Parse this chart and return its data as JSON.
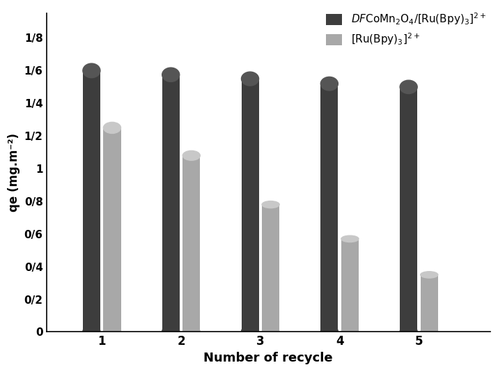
{
  "categories": [
    1,
    2,
    3,
    4,
    5
  ],
  "dark_values": [
    1.6,
    1.575,
    1.55,
    1.52,
    1.5
  ],
  "light_values": [
    1.25,
    1.08,
    0.78,
    0.57,
    0.35
  ],
  "dark_color": "#3d3d3d",
  "dark_top_color": "#555555",
  "light_color": "#a8a8a8",
  "light_top_color": "#c8c8c8",
  "ytick_labels": [
    "1/8",
    "1/6",
    "1/4",
    "1/2",
    "1",
    "0/8",
    "0/6",
    "0/4",
    "0/2",
    "0"
  ],
  "ytick_values": [
    1.8,
    1.6,
    1.4,
    1.2,
    1.0,
    0.8,
    0.6,
    0.4,
    0.2,
    0.0
  ],
  "ylabel": "qe (mg.m⁻²)",
  "xlabel": "Number of recycle",
  "ylim": [
    0,
    1.95
  ],
  "xlim": [
    0.3,
    5.9
  ],
  "bar_width": 0.22,
  "bar_gap": 0.04,
  "ellipse_height_ratio": 0.055,
  "ellipse_min_height": 0.04
}
